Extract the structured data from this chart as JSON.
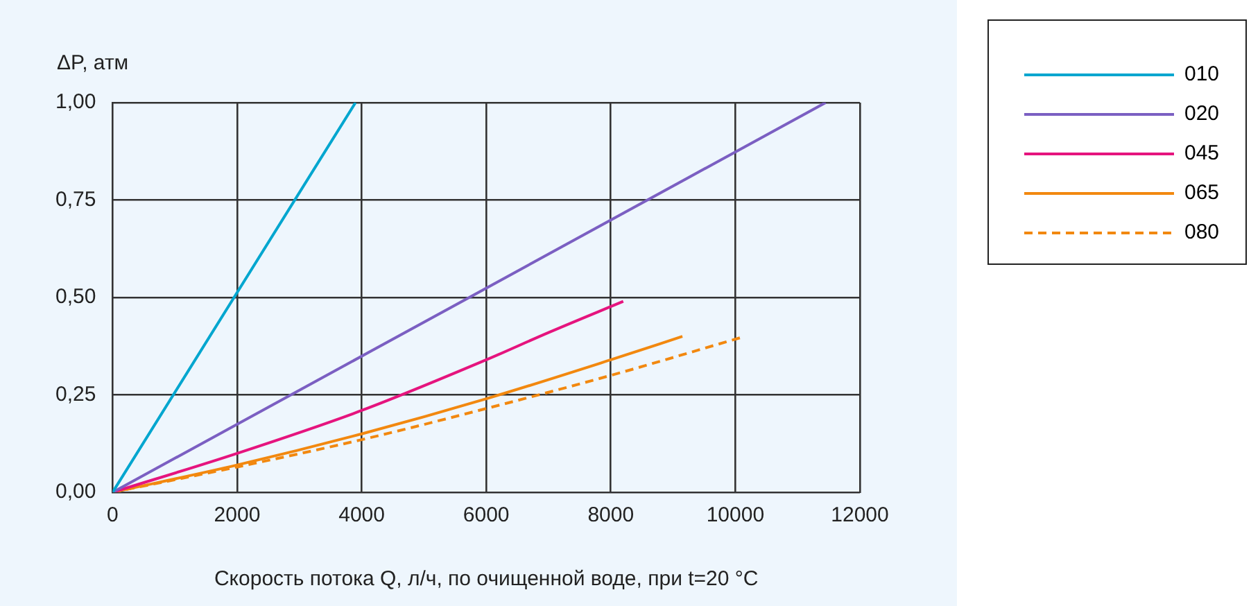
{
  "chart_data": {
    "type": "line",
    "xlabel": "Скорость потока Q, л/ч, по очищенной воде, при t=20 °С",
    "ylabel": "ΔP, атм",
    "xlim": [
      0,
      12000
    ],
    "xticks": [
      0,
      2000,
      4000,
      6000,
      8000,
      10000,
      12000
    ],
    "ylim": [
      0,
      1
    ],
    "yticks": [
      {
        "value": 0,
        "label": "0,00"
      },
      {
        "value": 0.25,
        "label": "0,25"
      },
      {
        "value": 0.5,
        "label": "0,50"
      },
      {
        "value": 0.75,
        "label": "0,75"
      },
      {
        "value": 1,
        "label": "1,00"
      }
    ],
    "grid": true,
    "legend": "top right",
    "marker": "none",
    "series": [
      {
        "name": "010",
        "color": "#00a6cf",
        "x": [
          0,
          3900
        ],
        "values": [
          0,
          1.0
        ]
      },
      {
        "name": "020",
        "color": "#7b5fc2",
        "x": [
          0,
          11450
        ],
        "values": [
          0,
          1.0
        ]
      },
      {
        "name": "045",
        "color": "#e5147e",
        "x": [
          0,
          2000,
          4000,
          6000,
          7000,
          8200
        ],
        "values": [
          0,
          0.1,
          0.21,
          0.34,
          0.41,
          0.49
        ]
      },
      {
        "name": "065",
        "color": "#f2880f",
        "x": [
          0,
          2000,
          4000,
          6000,
          8000,
          9150
        ],
        "values": [
          0,
          0.07,
          0.15,
          0.24,
          0.34,
          0.4
        ]
      },
      {
        "name": "080",
        "color": "#f2880f",
        "line_style": "dashed",
        "x": [
          0,
          2000,
          4000,
          6000,
          8000,
          10150
        ],
        "values": [
          0,
          0.065,
          0.135,
          0.215,
          0.3,
          0.4
        ]
      }
    ]
  }
}
